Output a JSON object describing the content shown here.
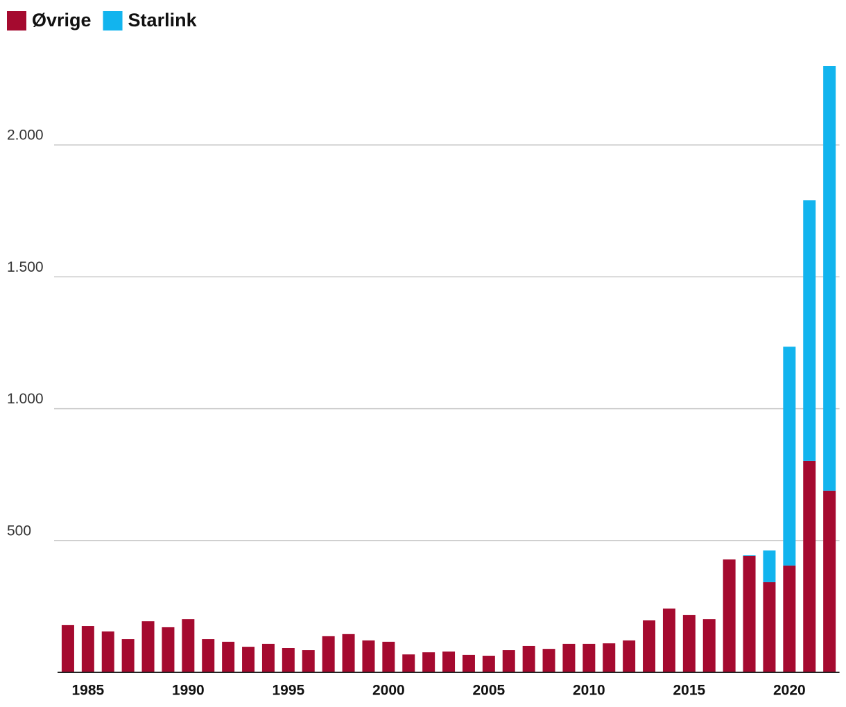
{
  "chart_data": {
    "type": "stacked-bar",
    "categories": [
      null,
      "1985",
      null,
      null,
      null,
      null,
      "1990",
      null,
      null,
      null,
      null,
      "1995",
      null,
      null,
      null,
      null,
      "2000",
      null,
      null,
      null,
      null,
      "2005",
      null,
      null,
      null,
      null,
      "2010",
      null,
      null,
      null,
      null,
      "2015",
      null,
      null,
      null,
      null,
      "2020",
      null,
      null
    ],
    "series": [
      {
        "name": "Øvrige",
        "color": "#a50a2f",
        "values": [
          179,
          176,
          155,
          126,
          194,
          171,
          202,
          126,
          116,
          97,
          108,
          92,
          84,
          137,
          145,
          121,
          116,
          68,
          76,
          79,
          66,
          63,
          84,
          100,
          89,
          108,
          108,
          110,
          121,
          197,
          242,
          218,
          202,
          428,
          442,
          342,
          405,
          802,
          689
        ]
      },
      {
        "name": "Starlink",
        "color": "#12b4ee",
        "values": [
          0,
          0,
          0,
          0,
          0,
          0,
          0,
          0,
          0,
          0,
          0,
          0,
          0,
          0,
          0,
          0,
          0,
          0,
          0,
          0,
          0,
          0,
          0,
          0,
          0,
          0,
          0,
          0,
          0,
          0,
          0,
          0,
          0,
          0,
          2,
          120,
          830,
          988,
          1611
        ]
      }
    ],
    "ylim": [
      0,
      2300
    ],
    "yticks": [
      500,
      {
        "value": 1000,
        "label": "1.000"
      },
      {
        "value": 1500,
        "label": "1.500"
      },
      {
        "value": 2000,
        "label": "2.000"
      }
    ],
    "grid": true,
    "legend": "top-left"
  }
}
